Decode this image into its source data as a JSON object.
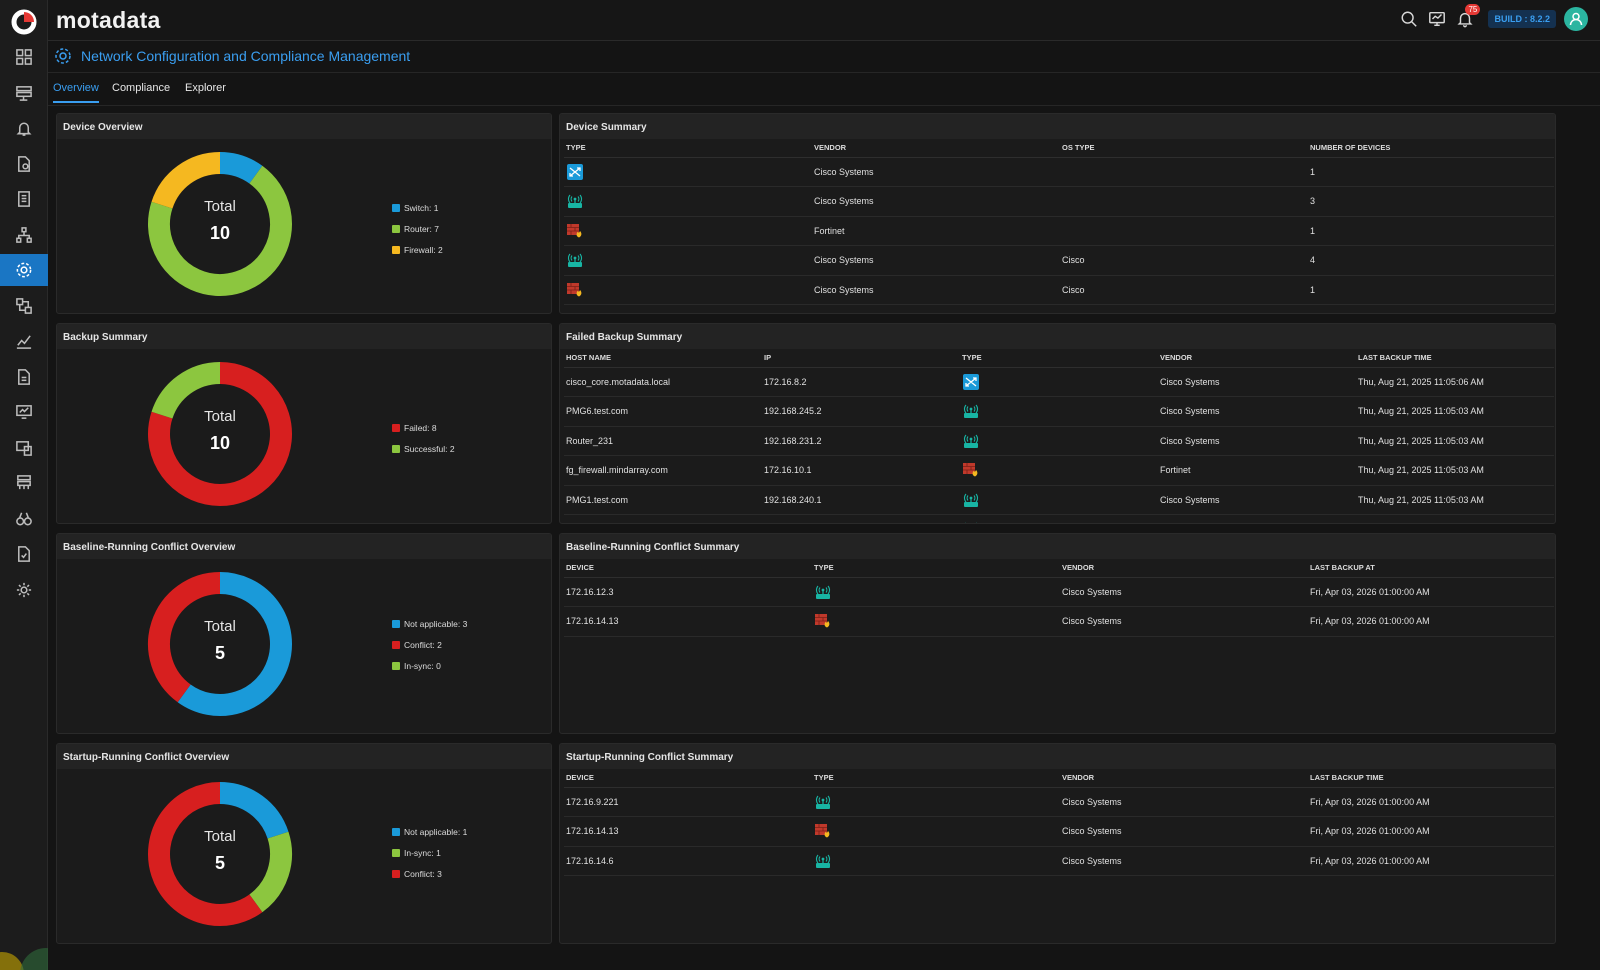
{
  "brand": {
    "name": "motadata"
  },
  "topbar": {
    "notifications_count": "75",
    "build": "BUILD : 8.2.2"
  },
  "page": {
    "title": "Network Configuration and Compliance Management"
  },
  "tabs": [
    {
      "label": "Overview",
      "active": true
    },
    {
      "label": "Compliance"
    },
    {
      "label": "Explorer"
    }
  ],
  "colors": {
    "accent": "#1a76c4",
    "switch": "#1a9ad9",
    "router": "#8cc63f",
    "firewall": "#f5b820",
    "failed": "#d71f1f",
    "success": "#8cc63f",
    "conflict": "#d71f1f",
    "na": "#1a9ad9",
    "insync": "#8cc63f"
  },
  "device_overview": {
    "title": "Device Overview",
    "total_label": "Total",
    "total": "10",
    "legend": [
      "Switch: 1",
      "Router: 7",
      "Firewall: 2"
    ],
    "chart_data": {
      "type": "pie",
      "categories": [
        "Switch",
        "Router",
        "Firewall"
      ],
      "values": [
        1,
        7,
        2
      ]
    }
  },
  "backup_summary": {
    "title": "Backup Summary",
    "total_label": "Total",
    "total": "10",
    "legend": [
      "Failed: 8",
      "Successful: 2"
    ],
    "chart_data": {
      "type": "pie",
      "categories": [
        "Failed",
        "Successful"
      ],
      "values": [
        8,
        2
      ]
    }
  },
  "baseline_overview": {
    "title": "Baseline-Running Conflict Overview",
    "total_label": "Total",
    "total": "5",
    "legend": [
      "Not applicable: 3",
      "Conflict: 2",
      "In-sync: 0"
    ],
    "chart_data": {
      "type": "pie",
      "categories": [
        "Not applicable",
        "Conflict",
        "In-sync"
      ],
      "values": [
        3,
        2,
        0
      ]
    }
  },
  "startup_overview": {
    "title": "Startup-Running Conflict Overview",
    "total_label": "Total",
    "total": "5",
    "legend": [
      "Not applicable: 1",
      "In-sync: 1",
      "Conflict: 3"
    ],
    "chart_data": {
      "type": "pie",
      "categories": [
        "Not applicable",
        "In-sync",
        "Conflict"
      ],
      "values": [
        1,
        1,
        3
      ]
    }
  },
  "device_summary": {
    "title": "Device Summary",
    "headers": [
      "TYPE",
      "VENDOR",
      "OS TYPE",
      "NUMBER OF DEVICES"
    ],
    "rows": [
      {
        "type": "switch-icon",
        "vendor": "Cisco Systems",
        "os": "",
        "count": "1"
      },
      {
        "type": "router-icon",
        "vendor": "Cisco Systems",
        "os": "",
        "count": "3"
      },
      {
        "type": "firewall-icon",
        "vendor": "Fortinet",
        "os": "",
        "count": "1"
      },
      {
        "type": "router-icon",
        "vendor": "Cisco Systems",
        "os": "Cisco",
        "count": "4"
      },
      {
        "type": "firewall-icon",
        "vendor": "Cisco Systems",
        "os": "Cisco",
        "count": "1"
      }
    ]
  },
  "failed_backup": {
    "title": "Failed Backup Summary",
    "headers": [
      "HOST NAME",
      "IP",
      "TYPE",
      "VENDOR",
      "LAST BACKUP TIME"
    ],
    "rows": [
      {
        "host": "cisco_core.motadata.local",
        "ip": "172.16.8.2",
        "type": "switch-icon",
        "vendor": "Cisco Systems",
        "time": "Thu, Aug 21, 2025 11:05:06 AM"
      },
      {
        "host": "PMG6.test.com",
        "ip": "192.168.245.2",
        "type": "router-icon",
        "vendor": "Cisco Systems",
        "time": "Thu, Aug 21, 2025 11:05:03 AM"
      },
      {
        "host": "Router_231",
        "ip": "192.168.231.2",
        "type": "router-icon",
        "vendor": "Cisco Systems",
        "time": "Thu, Aug 21, 2025 11:05:03 AM"
      },
      {
        "host": "fg_firewall.mindarray.com",
        "ip": "172.16.10.1",
        "type": "firewall-icon",
        "vendor": "Fortinet",
        "time": "Thu, Aug 21, 2025 11:05:03 AM"
      },
      {
        "host": "PMG1.test.com",
        "ip": "192.168.240.1",
        "type": "router-icon",
        "vendor": "Cisco Systems",
        "time": "Thu, Aug 21, 2025 11:05:03 AM"
      },
      {
        "host": "",
        "ip": "",
        "type": "router-icon",
        "vendor": "",
        "time": ""
      }
    ]
  },
  "baseline_summary": {
    "title": "Baseline-Running Conflict Summary",
    "headers": [
      "DEVICE",
      "TYPE",
      "VENDOR",
      "LAST BACKUP AT"
    ],
    "rows": [
      {
        "device": "172.16.12.3",
        "type": "router-icon",
        "vendor": "Cisco Systems",
        "time": "Fri, Apr 03, 2026 01:00:00 AM"
      },
      {
        "device": "172.16.14.13",
        "type": "firewall-icon",
        "vendor": "Cisco Systems",
        "time": "Fri, Apr 03, 2026 01:00:00 AM"
      }
    ]
  },
  "startup_summary": {
    "title": "Startup-Running Conflict Summary",
    "headers": [
      "DEVICE",
      "TYPE",
      "VENDOR",
      "LAST BACKUP TIME"
    ],
    "rows": [
      {
        "device": "172.16.9.221",
        "type": "router-icon",
        "vendor": "Cisco Systems",
        "time": "Fri, Apr 03, 2026 01:00:00 AM"
      },
      {
        "device": "172.16.14.13",
        "type": "firewall-icon",
        "vendor": "Cisco Systems",
        "time": "Fri, Apr 03, 2026 01:00:00 AM"
      },
      {
        "device": "172.16.14.6",
        "type": "router-icon",
        "vendor": "Cisco Systems",
        "time": "Fri, Apr 03, 2026 01:00:00 AM"
      }
    ]
  },
  "sidebar": {
    "items": [
      {
        "icon": "dashboard-icon"
      },
      {
        "icon": "inventory-icon"
      },
      {
        "icon": "alert-icon"
      },
      {
        "icon": "policy-icon"
      },
      {
        "icon": "report-icon"
      },
      {
        "icon": "topology-icon"
      },
      {
        "icon": "ncm-icon",
        "active": true
      },
      {
        "icon": "flow-icon"
      },
      {
        "icon": "metric-icon"
      },
      {
        "icon": "log-icon"
      },
      {
        "icon": "monitor-icon"
      },
      {
        "icon": "apm-icon"
      },
      {
        "icon": "network-icon"
      },
      {
        "icon": "explorer-icon"
      },
      {
        "icon": "audit-icon"
      },
      {
        "icon": "settings-icon"
      }
    ]
  }
}
